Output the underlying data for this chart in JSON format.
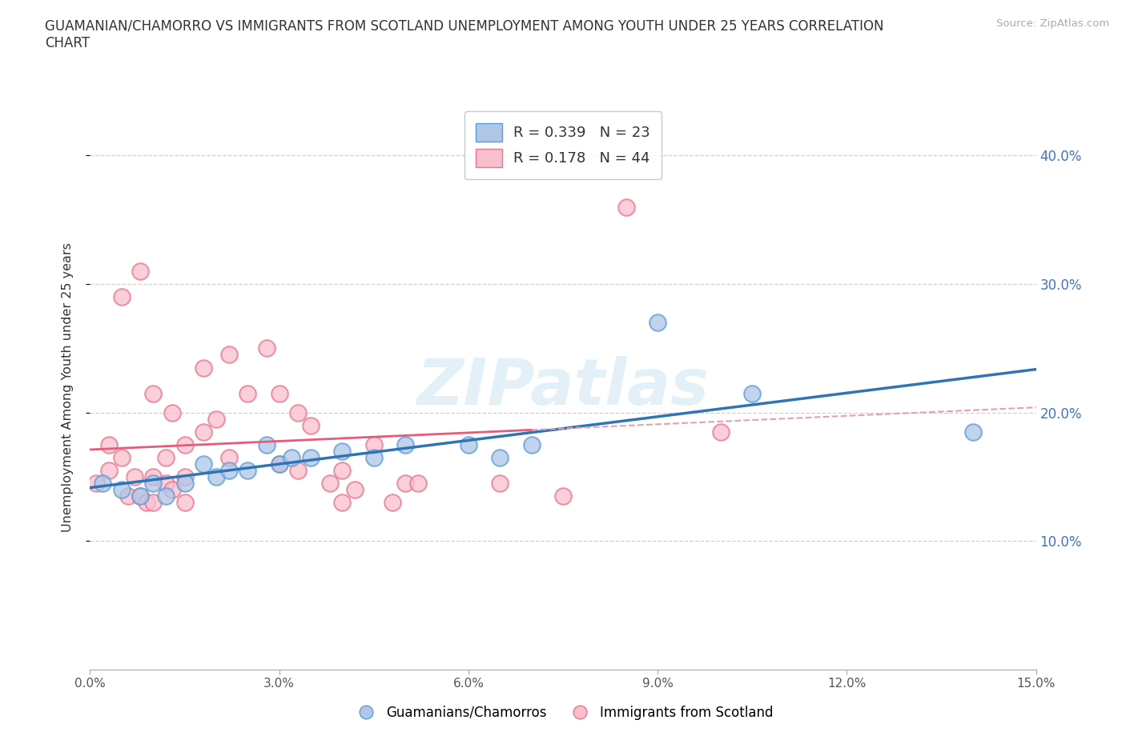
{
  "title_line1": "GUAMANIAN/CHAMORRO VS IMMIGRANTS FROM SCOTLAND UNEMPLOYMENT AMONG YOUTH UNDER 25 YEARS CORRELATION",
  "title_line2": "CHART",
  "source": "Source: ZipAtlas.com",
  "ylabel": "Unemployment Among Youth under 25 years",
  "xlim": [
    0.0,
    0.15
  ],
  "ylim": [
    0.0,
    0.44
  ],
  "xticks": [
    0.0,
    0.03,
    0.06,
    0.09,
    0.12,
    0.15
  ],
  "xticklabels": [
    "0.0%",
    "3.0%",
    "6.0%",
    "9.0%",
    "12.0%",
    "15.0%"
  ],
  "yticks": [
    0.1,
    0.2,
    0.3,
    0.4
  ],
  "yticklabels": [
    "10.0%",
    "20.0%",
    "30.0%",
    "40.0%"
  ],
  "guam_fill_color": "#aec6e8",
  "guam_edge_color": "#5b9bd5",
  "scot_fill_color": "#f9bfcc",
  "scot_edge_color": "#e8758e",
  "guam_line_color": "#2e75b6",
  "scot_line_color": "#e85a78",
  "scot_dash_color": "#e8a0b0",
  "watermark_text": "ZIPatlas",
  "legend_blue_R": "0.339",
  "legend_blue_N": "23",
  "legend_pink_R": "0.178",
  "legend_pink_N": "44",
  "guam_x": [
    0.002,
    0.005,
    0.008,
    0.01,
    0.012,
    0.015,
    0.018,
    0.02,
    0.022,
    0.025,
    0.028,
    0.03,
    0.032,
    0.035,
    0.04,
    0.045,
    0.05,
    0.06,
    0.065,
    0.07,
    0.09,
    0.105,
    0.14
  ],
  "guam_y": [
    0.145,
    0.14,
    0.135,
    0.145,
    0.135,
    0.145,
    0.16,
    0.15,
    0.155,
    0.155,
    0.175,
    0.16,
    0.165,
    0.165,
    0.17,
    0.165,
    0.175,
    0.175,
    0.165,
    0.175,
    0.27,
    0.215,
    0.185
  ],
  "scot_x": [
    0.001,
    0.003,
    0.003,
    0.005,
    0.005,
    0.006,
    0.007,
    0.008,
    0.008,
    0.009,
    0.01,
    0.01,
    0.01,
    0.012,
    0.012,
    0.013,
    0.013,
    0.015,
    0.015,
    0.015,
    0.018,
    0.018,
    0.02,
    0.022,
    0.022,
    0.025,
    0.028,
    0.03,
    0.03,
    0.033,
    0.033,
    0.035,
    0.038,
    0.04,
    0.04,
    0.042,
    0.045,
    0.048,
    0.05,
    0.052,
    0.065,
    0.075,
    0.085,
    0.1
  ],
  "scot_y": [
    0.145,
    0.155,
    0.175,
    0.165,
    0.29,
    0.135,
    0.15,
    0.135,
    0.31,
    0.13,
    0.13,
    0.15,
    0.215,
    0.145,
    0.165,
    0.14,
    0.2,
    0.13,
    0.15,
    0.175,
    0.185,
    0.235,
    0.195,
    0.165,
    0.245,
    0.215,
    0.25,
    0.16,
    0.215,
    0.2,
    0.155,
    0.19,
    0.145,
    0.13,
    0.155,
    0.14,
    0.175,
    0.13,
    0.145,
    0.145,
    0.145,
    0.135,
    0.36,
    0.185
  ],
  "background_color": "#ffffff",
  "grid_color": "#d0d0d0"
}
